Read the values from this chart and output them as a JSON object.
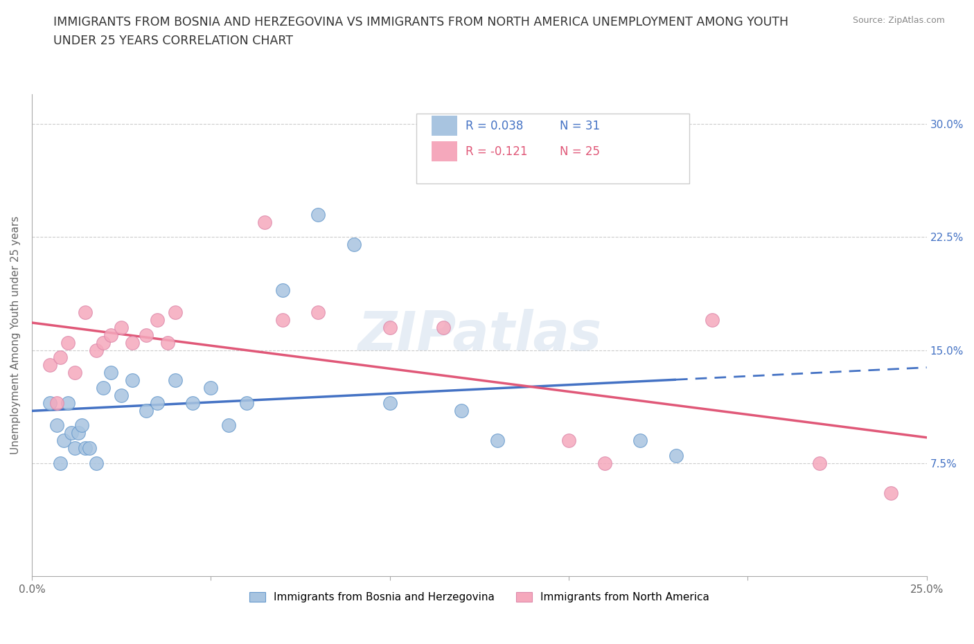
{
  "title": "IMMIGRANTS FROM BOSNIA AND HERZEGOVINA VS IMMIGRANTS FROM NORTH AMERICA UNEMPLOYMENT AMONG YOUTH\nUNDER 25 YEARS CORRELATION CHART",
  "source": "Source: ZipAtlas.com",
  "ylabel": "Unemployment Among Youth under 25 years",
  "xlim": [
    0.0,
    0.25
  ],
  "ylim": [
    0.0,
    0.32
  ],
  "x_ticks": [
    0.0,
    0.05,
    0.1,
    0.15,
    0.2,
    0.25
  ],
  "x_tick_labels": [
    "0.0%",
    "",
    "",
    "",
    "",
    "25.0%"
  ],
  "y_ticks": [
    0.0,
    0.075,
    0.15,
    0.225,
    0.3
  ],
  "y_tick_labels_right": [
    "",
    "7.5%",
    "15.0%",
    "22.5%",
    "30.0%"
  ],
  "grid_color": "#cccccc",
  "background_color": "#ffffff",
  "watermark": "ZIPatlas",
  "series1_label": "Immigrants from Bosnia and Herzegovina",
  "series2_label": "Immigrants from North America",
  "series1_color": "#a8c4e0",
  "series1_edge_color": "#6699cc",
  "series2_color": "#f5a8bc",
  "series2_edge_color": "#dd88aa",
  "series1_line_color": "#4472c4",
  "series2_line_color": "#e05878",
  "series1_R": 0.038,
  "series1_N": 31,
  "series2_R": -0.121,
  "series2_N": 25,
  "series1_x": [
    0.005,
    0.007,
    0.008,
    0.009,
    0.01,
    0.011,
    0.012,
    0.013,
    0.014,
    0.015,
    0.016,
    0.018,
    0.02,
    0.022,
    0.025,
    0.028,
    0.032,
    0.035,
    0.04,
    0.045,
    0.05,
    0.055,
    0.06,
    0.07,
    0.08,
    0.09,
    0.1,
    0.12,
    0.13,
    0.17,
    0.18
  ],
  "series1_y": [
    0.115,
    0.1,
    0.075,
    0.09,
    0.115,
    0.095,
    0.085,
    0.095,
    0.1,
    0.085,
    0.085,
    0.075,
    0.125,
    0.135,
    0.12,
    0.13,
    0.11,
    0.115,
    0.13,
    0.115,
    0.125,
    0.1,
    0.115,
    0.19,
    0.24,
    0.22,
    0.115,
    0.11,
    0.09,
    0.09,
    0.08
  ],
  "series2_x": [
    0.005,
    0.007,
    0.008,
    0.01,
    0.012,
    0.015,
    0.018,
    0.02,
    0.022,
    0.025,
    0.028,
    0.032,
    0.035,
    0.038,
    0.04,
    0.065,
    0.07,
    0.08,
    0.1,
    0.115,
    0.15,
    0.16,
    0.19,
    0.22,
    0.24
  ],
  "series2_y": [
    0.14,
    0.115,
    0.145,
    0.155,
    0.135,
    0.175,
    0.15,
    0.155,
    0.16,
    0.165,
    0.155,
    0.16,
    0.17,
    0.155,
    0.175,
    0.235,
    0.17,
    0.175,
    0.165,
    0.165,
    0.09,
    0.075,
    0.17,
    0.075,
    0.055
  ]
}
